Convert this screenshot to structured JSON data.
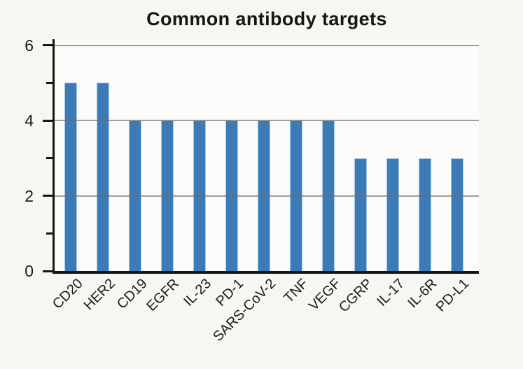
{
  "chart_data": {
    "type": "bar",
    "title": "Common antibody targets",
    "categories": [
      "CD20",
      "HER2",
      "CD19",
      "EGFR",
      "IL-23",
      "PD-1",
      "SARS-CoV-2",
      "TNF",
      "VEGF",
      "CGRP",
      "IL-17",
      "IL-6R",
      "PD-L1"
    ],
    "values": [
      5,
      5,
      4,
      4,
      4,
      4,
      4,
      4,
      4,
      3,
      3,
      3,
      3
    ],
    "xlabel": "",
    "ylabel": "",
    "ylim": [
      0,
      6
    ],
    "yticks": [
      0,
      2,
      4,
      6
    ],
    "minor_yticks": [
      1,
      3,
      5
    ],
    "gridline_values": [
      2,
      4,
      6
    ],
    "grid": true,
    "legend": false,
    "x_tick_rotation_deg": 45,
    "bar_color": "#3d7bb6",
    "bar_edge_color": "#a3cbe5",
    "axis_color": "#161616",
    "gridline_color": "#6b6b6b",
    "text_color": "#1c1c1c",
    "background_color": "#f8f6f1",
    "plot_background_color": "#fcfbf9"
  }
}
